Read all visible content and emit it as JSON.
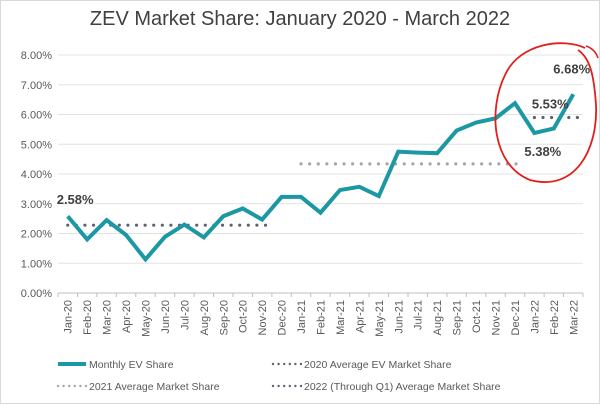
{
  "chart_data": {
    "type": "line",
    "title": "ZEV Market Share: January 2020 - March 2022",
    "categories": [
      "Jan-20",
      "Feb-20",
      "Mar-20",
      "Apr-20",
      "May-20",
      "Jun-20",
      "Jul-20",
      "Aug-20",
      "Sep-20",
      "Oct-20",
      "Nov-20",
      "Dec-20",
      "Jan-21",
      "Feb-21",
      "Mar-21",
      "Apr-21",
      "May-21",
      "Jun-21",
      "Jul-21",
      "Aug-21",
      "Sep-21",
      "Oct-21",
      "Nov-21",
      "Dec-21",
      "Jan-22",
      "Feb-22",
      "Mar-22"
    ],
    "y_ticks": [
      "0.00%",
      "1.00%",
      "2.00%",
      "3.00%",
      "4.00%",
      "5.00%",
      "6.00%",
      "7.00%",
      "8.00%"
    ],
    "ylim": [
      0,
      8
    ],
    "grid": "horizontal",
    "legend_position": "bottom",
    "series": [
      {
        "name": "Monthly EV Share",
        "style": "solid",
        "color": "#1c97a4",
        "values": [
          2.58,
          1.8,
          2.45,
          1.95,
          1.13,
          1.89,
          2.3,
          1.87,
          2.58,
          2.84,
          2.47,
          3.23,
          3.23,
          2.7,
          3.46,
          3.57,
          3.26,
          4.75,
          4.72,
          4.7,
          5.46,
          5.73,
          5.87,
          6.38,
          5.38,
          5.53,
          6.68
        ]
      },
      {
        "name": "2020 Average EV Market Share",
        "style": "dotted",
        "color": "#5b6470",
        "value": 2.28,
        "range": [
          "Jan-20",
          "Nov-20"
        ]
      },
      {
        "name": "2021 Average Market Share",
        "style": "dotted",
        "color": "#a6a6a6",
        "value": 4.34,
        "range": [
          "Jan-21",
          "Dec-21"
        ]
      },
      {
        "name": "2022 (Through Q1) Average Market Share",
        "style": "dotted",
        "color": "#5b6470",
        "value": 5.9,
        "range": [
          "Jan-22",
          "Mar-22"
        ]
      }
    ],
    "data_labels": [
      {
        "category": "Jan-20",
        "text": "2.58%"
      },
      {
        "category": "Mar-22",
        "text": "6.68%"
      },
      {
        "category": "Feb-22",
        "text": "5.53%"
      },
      {
        "category": "Jan-22",
        "text": "5.38%"
      }
    ],
    "annotation": {
      "shape": "hand-drawn circle",
      "color": "#e0201b",
      "around": [
        "Dec-21",
        "Mar-22"
      ]
    }
  }
}
